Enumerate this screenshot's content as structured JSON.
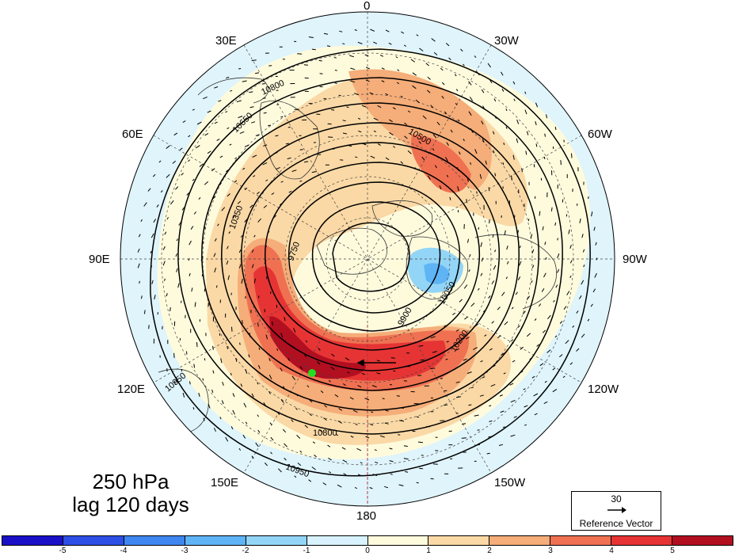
{
  "title": {
    "line1": "250 hPa",
    "line2": "lag 120 days"
  },
  "longitude_labels": {
    "0": "0",
    "30W": "30W",
    "60W": "60W",
    "90W": "90W",
    "120W": "120W",
    "150W": "150W",
    "180": "180",
    "150E": "150E",
    "120E": "120E",
    "90E": "90E",
    "60E": "60E",
    "30E": "30E"
  },
  "contour_labels": [
    "9750",
    "9900",
    "10050",
    "10200",
    "10350",
    "10500",
    "10650",
    "10800",
    "10950"
  ],
  "reference_vector": {
    "value": "30",
    "label": "Reference Vector"
  },
  "colorbar": {
    "colors": [
      "#1a10c8",
      "#2d4fe6",
      "#3f86f0",
      "#5fb4f5",
      "#93d5f7",
      "#d8f3fd",
      "#fefbdd",
      "#fad9a6",
      "#f5ad79",
      "#ef7152",
      "#e63434",
      "#b20f21"
    ],
    "labels": [
      "-5",
      "-4",
      "-3",
      "-2",
      "-1",
      "0",
      "1",
      "2",
      "3",
      "4",
      "5"
    ]
  },
  "colors": {
    "map_background": "#dff4fb",
    "warm_anomaly": "#e63434",
    "cold_anomaly": "#5fb4f5",
    "marker": "#22dd22"
  }
}
